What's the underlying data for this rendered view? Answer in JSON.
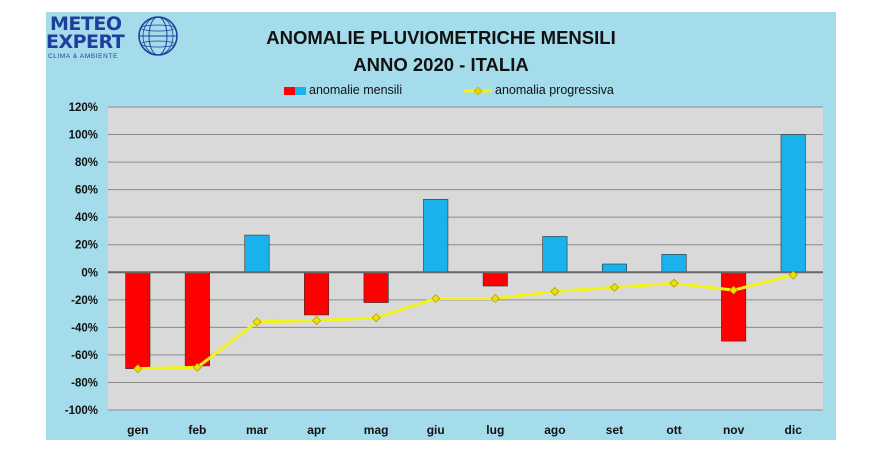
{
  "logo": {
    "line1": "METEO",
    "line2": "EXPERT",
    "tagline": "CLIMA & AMBIENTE"
  },
  "colors": {
    "background": "#a5dcec",
    "plot_area": "#d9d9d9",
    "negative_bar": "#ff0000",
    "positive_bar": "#1ab2ec",
    "line": "#f2f21a",
    "line_marker": "#f0e000"
  },
  "chart_data": {
    "type": "bar",
    "title": "ANOMALIE PLUVIOMETRICHE MENSILI",
    "subtitle": "ANNO 2020 - ITALIA",
    "categories": [
      "gen",
      "feb",
      "mar",
      "apr",
      "mag",
      "giu",
      "lug",
      "ago",
      "set",
      "ott",
      "nov",
      "dic"
    ],
    "series": [
      {
        "name": "anomalie mensili",
        "type": "bar",
        "values": [
          -70,
          -68,
          27,
          -31,
          -22,
          53,
          -10,
          26,
          6,
          13,
          -50,
          100
        ]
      },
      {
        "name": "anomalia progressiva",
        "type": "line",
        "values": [
          -70,
          -69,
          -36,
          -35,
          -33,
          -19,
          -19,
          -14,
          -11,
          -8,
          -13,
          -2
        ]
      }
    ],
    "ylim": [
      -100,
      120
    ],
    "yticks": [
      120,
      100,
      80,
      60,
      40,
      20,
      0,
      -20,
      -40,
      -60,
      -80,
      -100
    ],
    "ytick_suffix": "%",
    "xlabel": "",
    "ylabel": "",
    "grid": true,
    "legend": "top"
  }
}
